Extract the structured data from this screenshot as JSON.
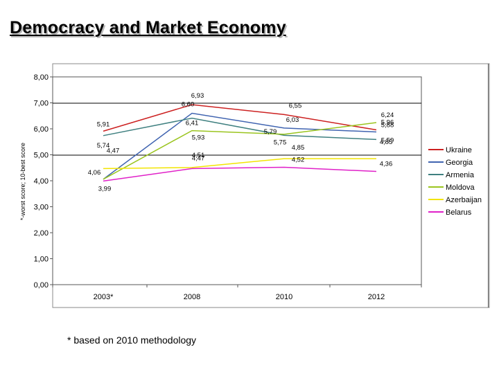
{
  "slide": {
    "title": "Democracy and Market Economy",
    "footnote": "* based on 2010 methodology"
  },
  "chart_data": {
    "type": "line",
    "title": "",
    "xlabel": "",
    "ylabel": "*-worst score; 10-best score",
    "ylim": [
      0,
      8
    ],
    "yticks": [
      "0,00",
      "1,00",
      "2,00",
      "3,00",
      "4,00",
      "5,00",
      "6,00",
      "7,00",
      "8,00"
    ],
    "categories": [
      "2003*",
      "2008",
      "2010",
      "2012"
    ],
    "grid": false,
    "legend_position": "right",
    "series": [
      {
        "name": "Ukraine",
        "color": "#cc2020",
        "values": [
          5.91,
          6.93,
          6.55,
          5.96
        ],
        "labels": [
          "5,91",
          "6,93",
          "6,55",
          "5,96"
        ]
      },
      {
        "name": "Georgia",
        "color": "#3f63b0",
        "values": [
          4.06,
          6.6,
          6.03,
          5.88
        ],
        "labels": [
          "4,06",
          "6,60",
          "6,03",
          "5,88"
        ]
      },
      {
        "name": "Armenia",
        "color": "#3f8080",
        "values": [
          5.74,
          6.41,
          5.75,
          5.59
        ],
        "labels": [
          "5,74",
          "6,41",
          "5,75",
          "5,59"
        ]
      },
      {
        "name": "Moldova",
        "color": "#9ac41e",
        "values": [
          4.06,
          5.93,
          5.79,
          6.24
        ],
        "labels": [
          "",
          "5,93",
          "5,79",
          "6,24"
        ]
      },
      {
        "name": "Azerbaijan",
        "color": "#f2e400",
        "values": [
          4.47,
          4.51,
          4.85,
          4.85
        ],
        "labels": [
          "4,47",
          "4,51",
          "4,85",
          "4,85"
        ]
      },
      {
        "name": "Belarus",
        "color": "#e020c8",
        "values": [
          3.99,
          4.47,
          4.52,
          4.36
        ],
        "labels": [
          "3,99",
          "4,47",
          "4,52",
          "4,36"
        ]
      }
    ]
  }
}
